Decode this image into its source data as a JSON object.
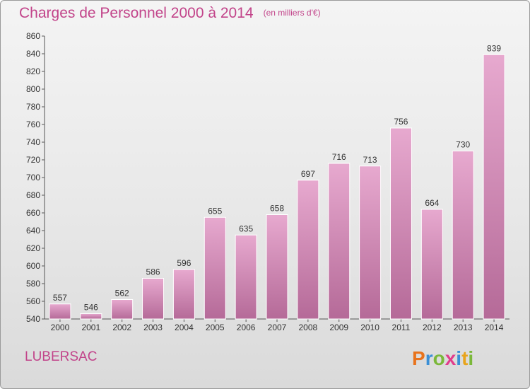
{
  "title": "Charges de Personnel 2000 à 2014",
  "subtitle": "(en milliers d'€)",
  "location": "LUBERSAC",
  "brand": {
    "letters": [
      "P",
      "r",
      "o",
      "x",
      "i",
      "t",
      "i"
    ],
    "colors": [
      "#e8731c",
      "#3a8fd6",
      "#7bb83a",
      "#e23c8b",
      "#3a8fd6",
      "#e8a41c",
      "#7bb83a"
    ]
  },
  "colors": {
    "bar_top": "#e7a9cf",
    "bar_bottom": "#b56a98",
    "text": "#333333",
    "accent": "#c2448a"
  },
  "chart_data": {
    "type": "bar",
    "categories": [
      "2000",
      "2001",
      "2002",
      "2003",
      "2004",
      "2005",
      "2006",
      "2007",
      "2008",
      "2009",
      "2010",
      "2011",
      "2012",
      "2013",
      "2014"
    ],
    "values": [
      557,
      546,
      562,
      586,
      596,
      655,
      635,
      658,
      697,
      716,
      713,
      756,
      664,
      730,
      839
    ],
    "ylim": [
      540,
      860
    ],
    "yticks": [
      540,
      560,
      580,
      600,
      620,
      640,
      660,
      680,
      700,
      720,
      740,
      760,
      780,
      800,
      820,
      840,
      860
    ],
    "grid": false
  }
}
